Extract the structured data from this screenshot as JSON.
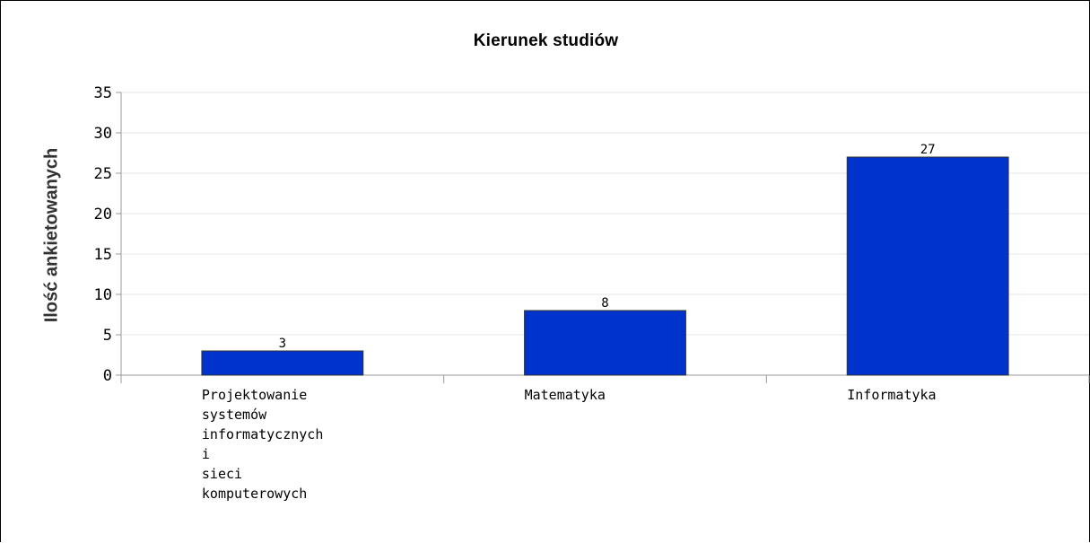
{
  "chart_data": {
    "type": "bar",
    "title": "Kierunek studiów",
    "ylabel": "Ilość ankietowanych",
    "xlabel": "",
    "categories": [
      [
        "Projektowanie",
        "systemów",
        "informatycznych",
        "i",
        "sieci",
        "komputerowych"
      ],
      [
        "Matematyka"
      ],
      [
        "Informatyka"
      ]
    ],
    "values": [
      3,
      8,
      27
    ],
    "ylim": [
      0,
      35
    ],
    "yticks": [
      "0",
      "5",
      "10",
      "15",
      "20",
      "25",
      "30",
      "35"
    ],
    "grid": true,
    "colors": {
      "bar": "#0033cc",
      "bar_edge": "#333333",
      "grid": "#e6e6e6",
      "axis": "#999999"
    }
  }
}
